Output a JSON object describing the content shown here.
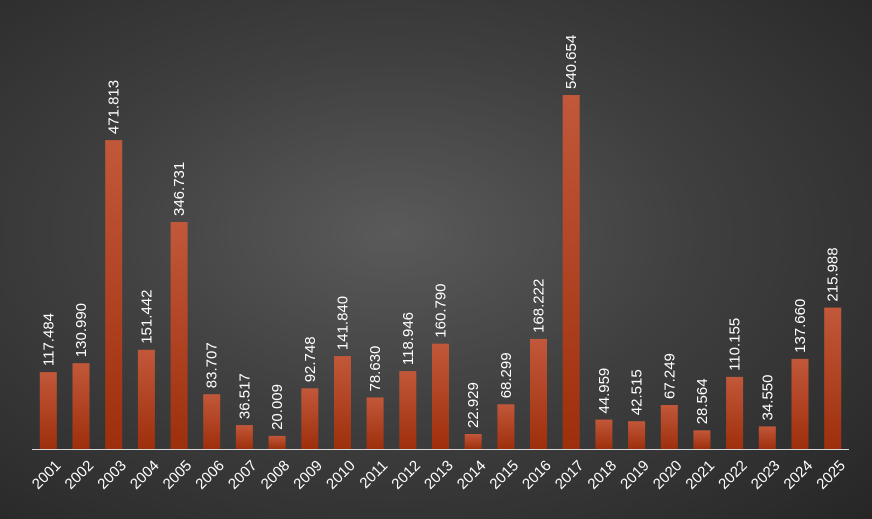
{
  "chart_data": {
    "type": "bar",
    "categories": [
      "2001",
      "2002",
      "2003",
      "2004",
      "2005",
      "2006",
      "2007",
      "2008",
      "2009",
      "2010",
      "2011",
      "2012",
      "2013",
      "2014",
      "2015",
      "2016",
      "2017",
      "2018",
      "2019",
      "2020",
      "2021",
      "2022",
      "2023",
      "2024",
      "2025"
    ],
    "values": [
      117.484,
      130.99,
      471.813,
      151.442,
      346.731,
      83.707,
      36.517,
      20.009,
      92.748,
      141.84,
      78.63,
      118.946,
      160.79,
      22.929,
      68.299,
      168.222,
      540.654,
      44.959,
      42.515,
      67.249,
      28.564,
      110.155,
      34.55,
      137.66,
      215.988
    ],
    "value_labels": [
      "117.484",
      "130.990",
      "471.813",
      "151.442",
      "346.731",
      "83.707",
      "36.517",
      "20.009",
      "92.748",
      "141.840",
      "78.630",
      "118.946",
      "160.790",
      "22.929",
      "68.299",
      "168.222",
      "540.654",
      "44.959",
      "42.515",
      "67.249",
      "28.564",
      "110.155",
      "34.550",
      "137.660",
      "215.988"
    ],
    "title": "",
    "xlabel": "",
    "ylabel": "",
    "ylim": [
      0,
      540.654
    ],
    "grid": false,
    "legend": "none",
    "colors": {
      "bar_top": "#c2583a",
      "bar_bottom": "#9e2f0c",
      "axis": "#d9d9d9",
      "text": "#ffffff"
    }
  }
}
